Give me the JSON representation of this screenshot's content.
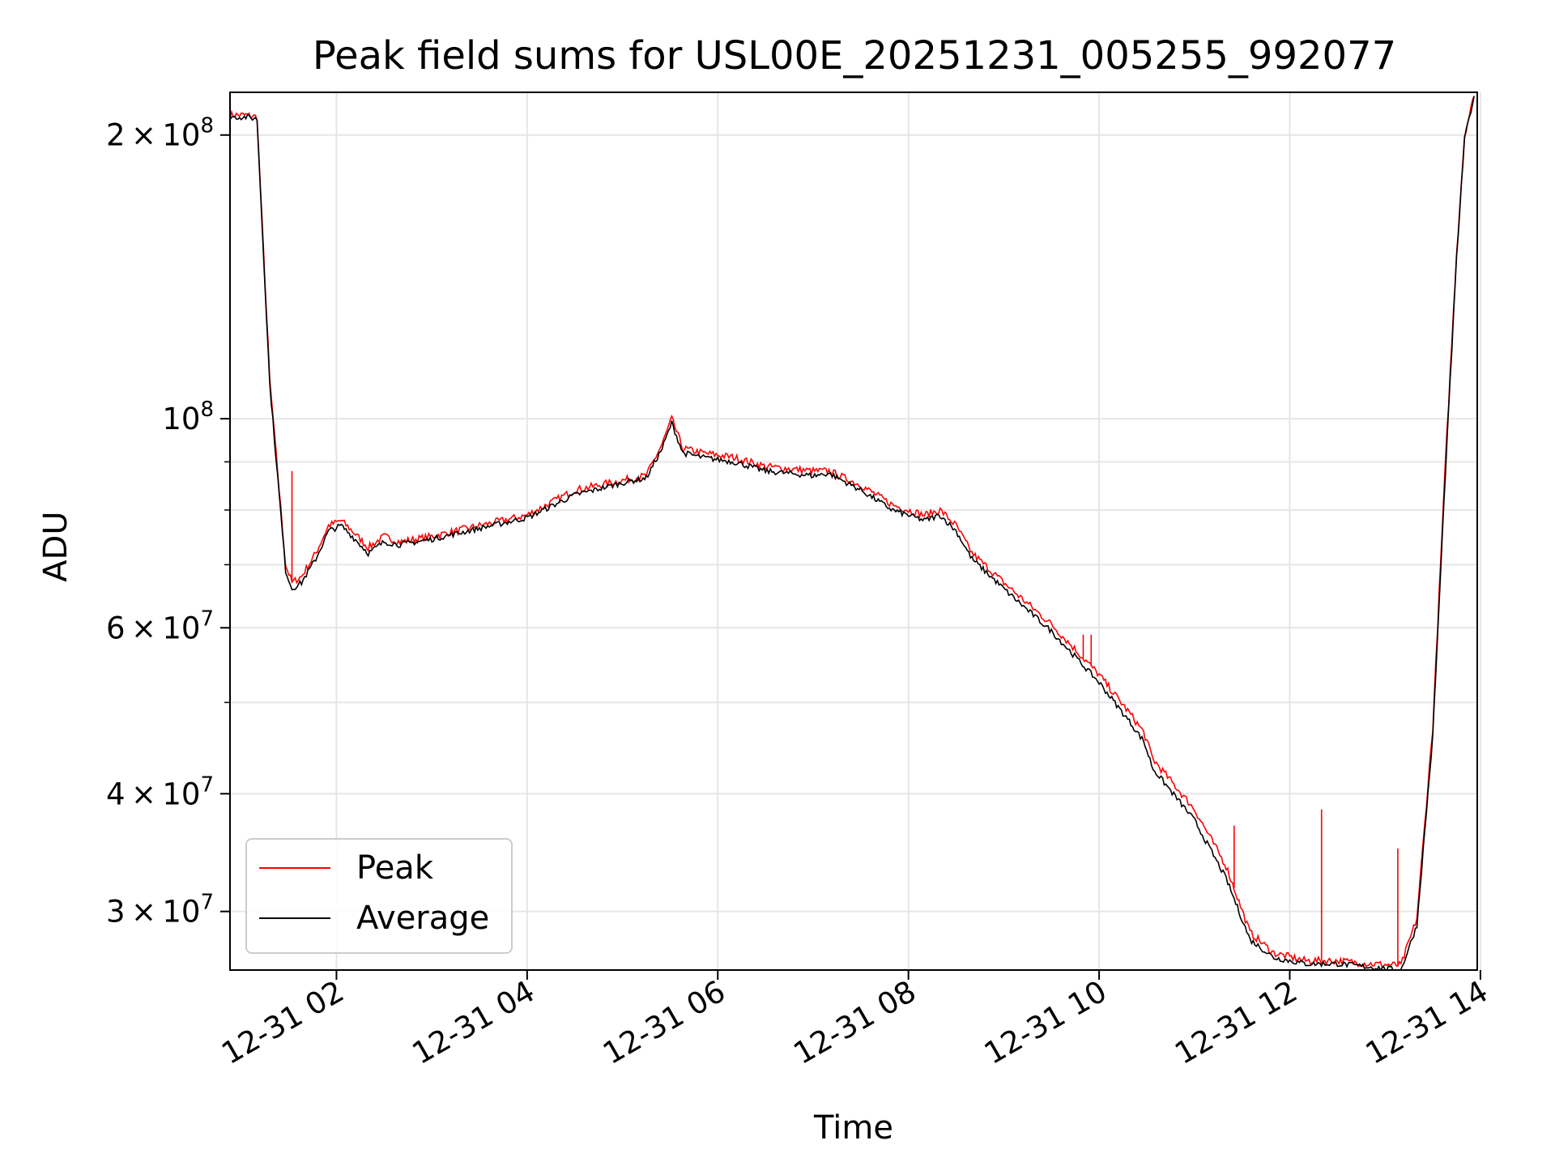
{
  "chart_data": {
    "type": "line",
    "title": "Peak field sums for USL00E_20251231_005255_992077",
    "xlabel": "Time",
    "ylabel": "ADU",
    "yscale": "log",
    "xlim": [
      "12-31 00:53",
      "12-31 13:58"
    ],
    "ylim": [
      26000000,
      222000000
    ],
    "x_ticks": [
      "12-31 02",
      "12-31 04",
      "12-31 06",
      "12-31 08",
      "12-31 10",
      "12-31 12",
      "12-31 14"
    ],
    "y_ticks": [
      {
        "value": 30000000,
        "mant": "3",
        "exp": "7"
      },
      {
        "value": 40000000,
        "mant": "4",
        "exp": "7"
      },
      {
        "value": 60000000,
        "mant": "6",
        "exp": "7"
      },
      {
        "value": 100000000,
        "mant": "",
        "exp": "8"
      },
      {
        "value": 200000000,
        "mant": "2",
        "exp": "8"
      }
    ],
    "grid": true,
    "legend_position": "lower left",
    "series": [
      {
        "name": "Peak",
        "color": "#ff0000",
        "x": [
          "12-31 00:53",
          "12-31 01:03",
          "12-31 01:10",
          "12-31 01:18",
          "12-31 01:28",
          "12-31 01:32",
          "12-31 01:38",
          "12-31 01:47",
          "12-31 01:55",
          "12-31 02:03",
          "12-31 02:10",
          "12-31 02:20",
          "12-31 02:30",
          "12-31 02:40",
          "12-31 03:00",
          "12-31 03:30",
          "12-31 04:00",
          "12-31 04:30",
          "12-31 05:00",
          "12-31 05:15",
          "12-31 05:25",
          "12-31 05:31",
          "12-31 05:38",
          "12-31 05:50",
          "12-31 06:10",
          "12-31 06:30",
          "12-31 07:00",
          "12-31 07:10",
          "12-31 07:30",
          "12-31 07:50",
          "12-31 08:10",
          "12-31 08:20",
          "12-31 08:30",
          "12-31 08:40",
          "12-31 09:00",
          "12-31 09:30",
          "12-31 10:00",
          "12-31 10:20",
          "12-31 10:28",
          "12-31 10:34",
          "12-31 11:00",
          "12-31 11:20",
          "12-31 11:35",
          "12-31 11:50",
          "12-31 12:10",
          "12-31 12:30",
          "12-31 12:50",
          "12-31 13:10",
          "12-31 13:20",
          "12-31 13:30",
          "12-31 13:38",
          "12-31 13:45",
          "12-31 13:50",
          "12-31 13:56"
        ],
        "values": [
          210000000,
          210000000,
          209000000,
          110000000,
          70000000,
          67000000,
          68000000,
          72000000,
          77000000,
          78000000,
          76000000,
          73000000,
          75000000,
          74000000,
          75000000,
          77000000,
          79000000,
          84000000,
          86000000,
          87000000,
          94000000,
          100000000,
          93000000,
          92000000,
          91000000,
          89000000,
          88000000,
          88000000,
          85000000,
          81000000,
          79000000,
          80000000,
          77000000,
          72000000,
          67000000,
          60500000,
          53500000,
          48500000,
          46500000,
          43500000,
          38500000,
          33500000,
          28500000,
          27100000,
          26600000,
          26600000,
          26400000,
          26300000,
          29500000,
          47000000,
          90000000,
          150000000,
          200000000,
          220000000
        ]
      },
      {
        "name": "Average",
        "color": "#000000",
        "x": [
          "12-31 00:53",
          "12-31 01:03",
          "12-31 01:10",
          "12-31 01:18",
          "12-31 01:28",
          "12-31 01:32",
          "12-31 01:38",
          "12-31 01:47",
          "12-31 01:55",
          "12-31 02:03",
          "12-31 02:10",
          "12-31 02:20",
          "12-31 02:30",
          "12-31 02:40",
          "12-31 03:00",
          "12-31 03:30",
          "12-31 04:00",
          "12-31 04:30",
          "12-31 05:00",
          "12-31 05:15",
          "12-31 05:25",
          "12-31 05:31",
          "12-31 05:38",
          "12-31 05:50",
          "12-31 06:10",
          "12-31 06:30",
          "12-31 07:00",
          "12-31 07:10",
          "12-31 07:30",
          "12-31 07:50",
          "12-31 08:10",
          "12-31 08:20",
          "12-31 08:30",
          "12-31 08:40",
          "12-31 09:00",
          "12-31 09:30",
          "12-31 10:00",
          "12-31 10:20",
          "12-31 10:28",
          "12-31 10:34",
          "12-31 11:00",
          "12-31 11:20",
          "12-31 11:35",
          "12-31 11:50",
          "12-31 12:10",
          "12-31 12:30",
          "12-31 12:50",
          "12-31 13:10",
          "12-31 13:20",
          "12-31 13:30",
          "12-31 13:38",
          "12-31 13:45",
          "12-31 13:50",
          "12-31 13:56"
        ],
        "values": [
          209000000,
          209000000,
          208000000,
          109000000,
          69000000,
          66000000,
          67000000,
          71000000,
          76000000,
          77000000,
          75000000,
          72000000,
          74000000,
          73500000,
          74500000,
          76500000,
          78500000,
          83000000,
          85500000,
          86500000,
          93000000,
          99000000,
          92000000,
          91000000,
          90000000,
          88000000,
          87000000,
          87500000,
          84000000,
          80000000,
          78000000,
          79000000,
          76000000,
          71000000,
          66000000,
          59500000,
          52500000,
          47500000,
          45500000,
          42500000,
          37500000,
          32500000,
          28000000,
          26800000,
          26400000,
          26400000,
          26200000,
          26000000,
          29000000,
          46000000,
          88000000,
          148000000,
          198000000,
          220000000
        ]
      }
    ],
    "spikes": [
      {
        "series": "Peak",
        "x": "12-31 01:32",
        "value": 88000000
      },
      {
        "series": "Peak",
        "x": "12-31 09:50",
        "value": 59000000
      },
      {
        "series": "Peak",
        "x": "12-31 09:55",
        "value": 59000000
      },
      {
        "series": "Peak",
        "x": "12-31 11:25",
        "value": 37000000
      },
      {
        "series": "Peak",
        "x": "12-31 12:20",
        "value": 38500000
      },
      {
        "series": "Peak",
        "x": "12-31 13:08",
        "value": 35000000
      }
    ]
  }
}
